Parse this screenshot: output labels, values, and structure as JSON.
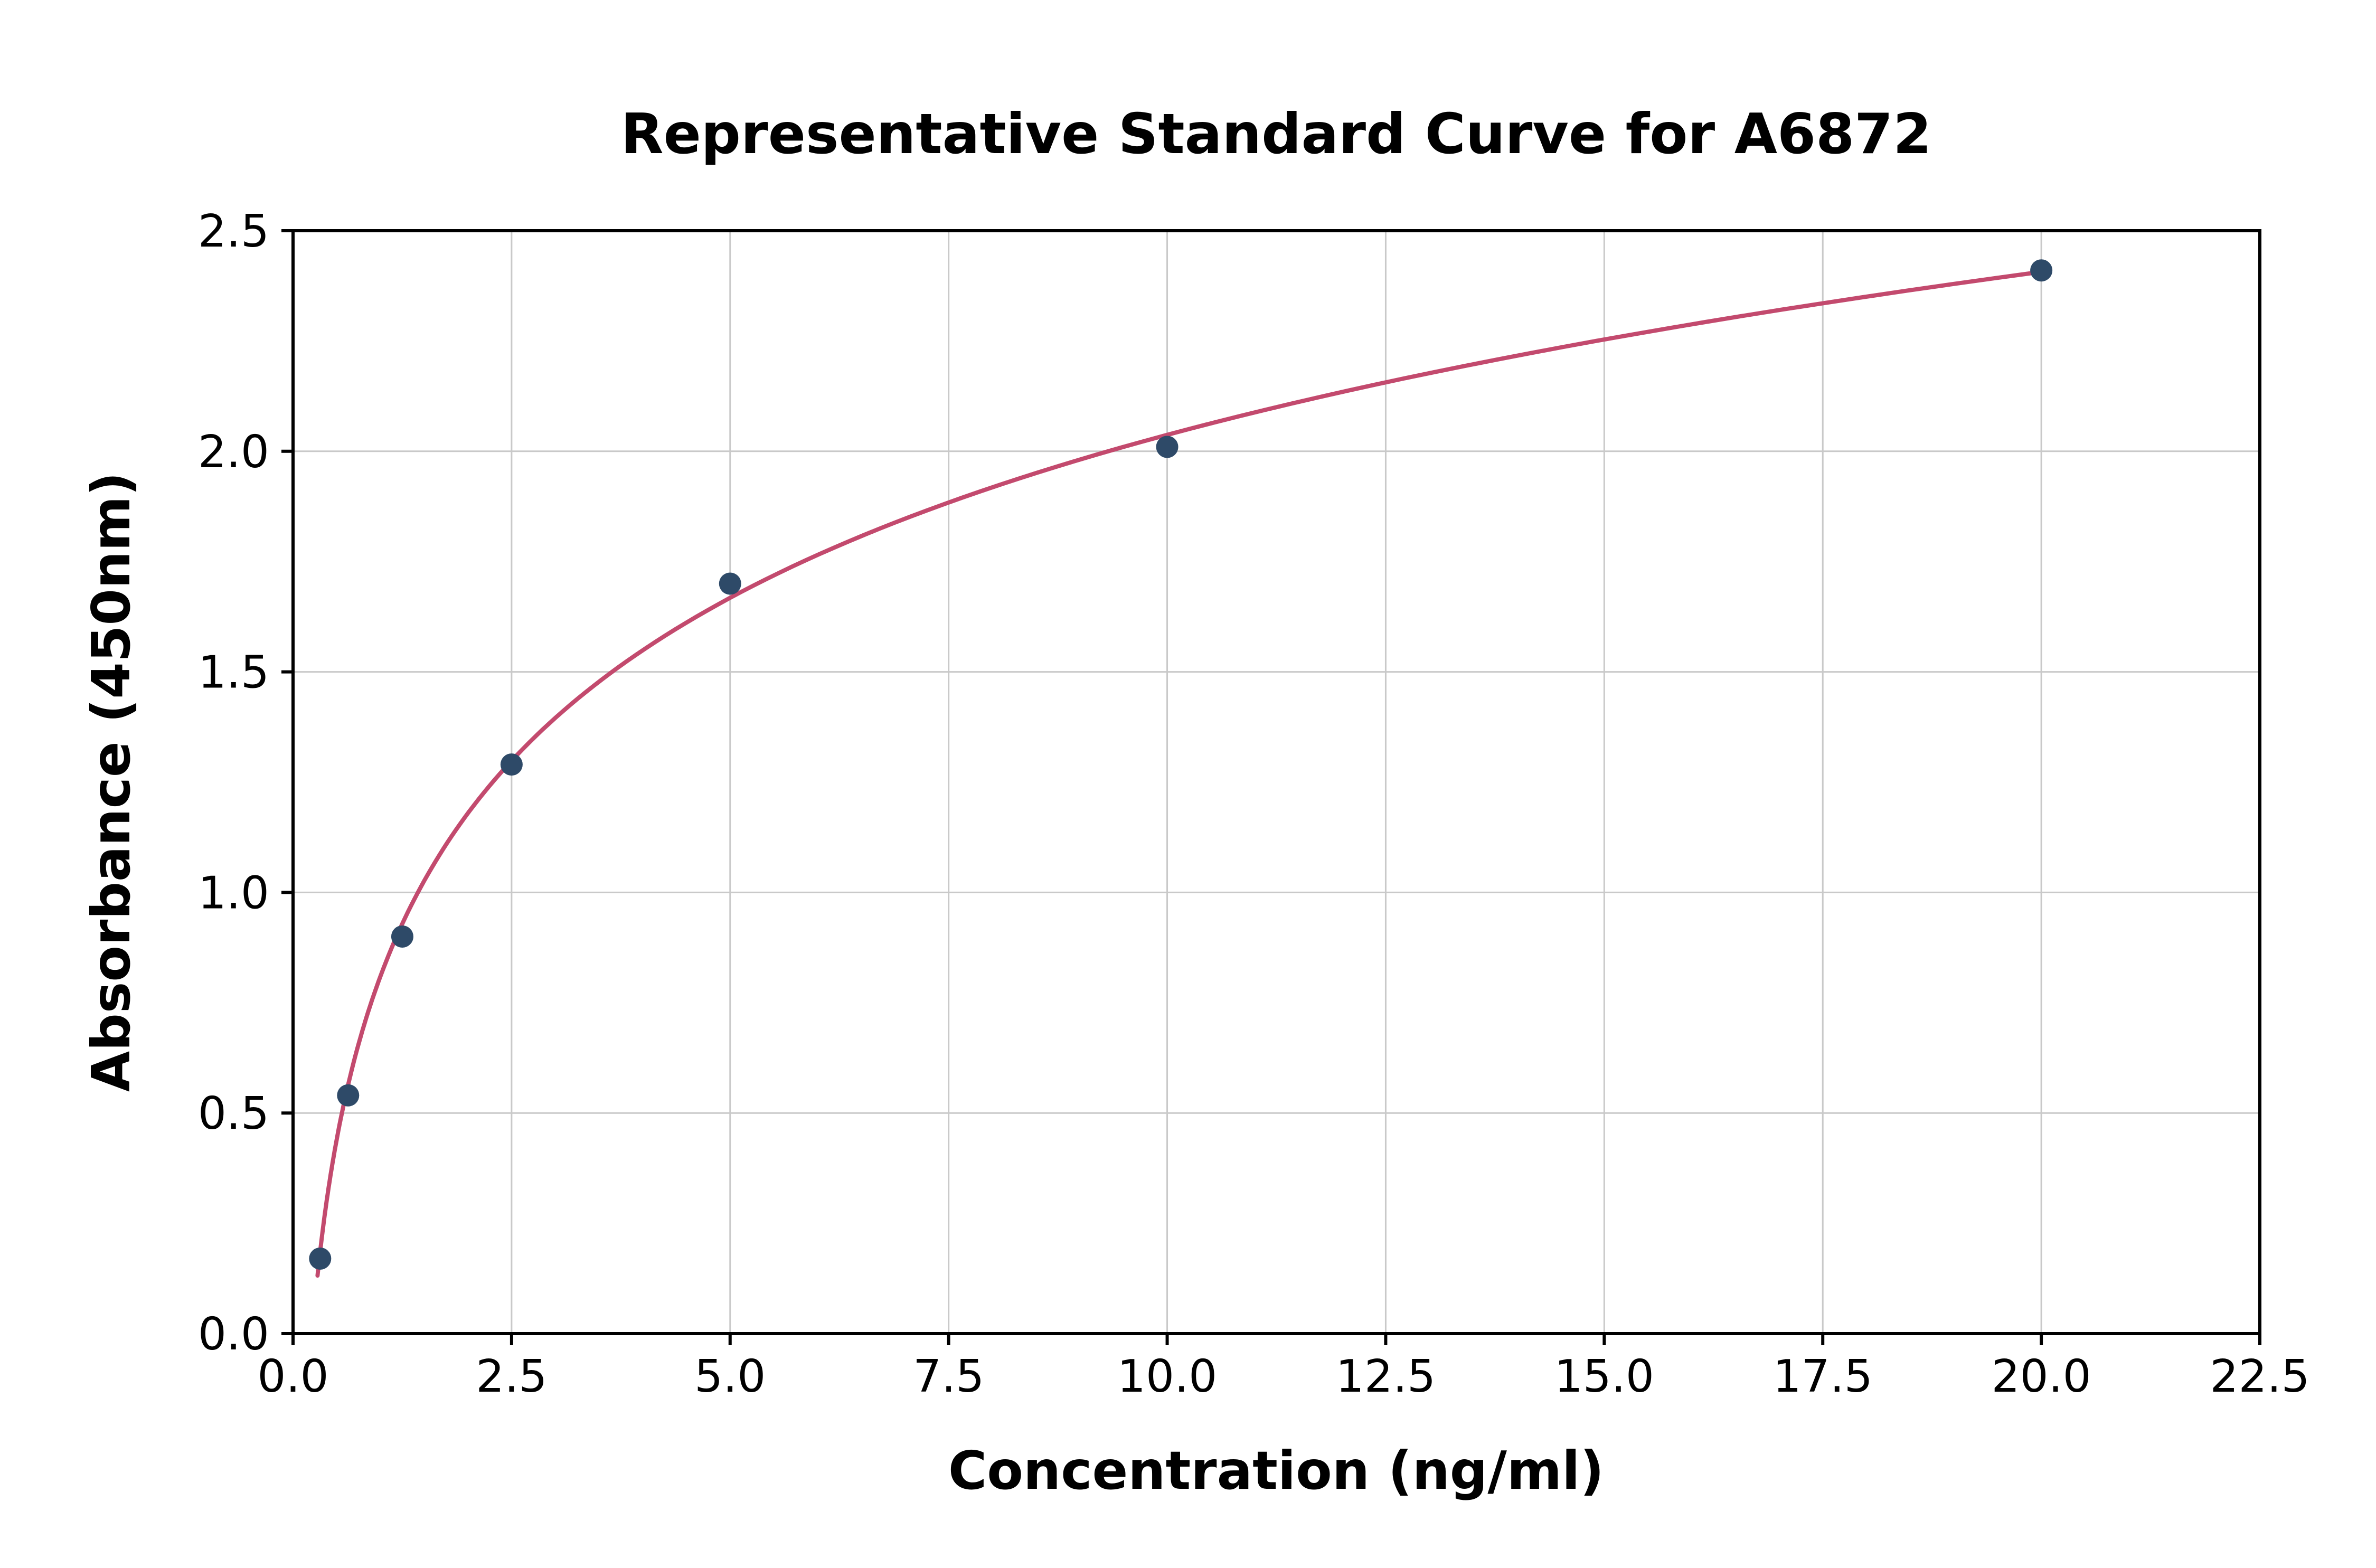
{
  "chart_data": {
    "type": "scatter",
    "title": "Representative Standard Curve for A6872",
    "xlabel": "Concentration (ng/ml)",
    "ylabel": "Absorbance (450nm)",
    "xlim": [
      0,
      22.5
    ],
    "ylim": [
      0,
      2.5
    ],
    "x_ticks": [
      0.0,
      2.5,
      5.0,
      7.5,
      10.0,
      12.5,
      15.0,
      17.5,
      20.0,
      22.5
    ],
    "y_ticks": [
      0.0,
      0.5,
      1.0,
      1.5,
      2.0,
      2.5
    ],
    "grid": true,
    "legend": "none",
    "points": [
      {
        "x": 0.31,
        "y": 0.17
      },
      {
        "x": 0.63,
        "y": 0.54
      },
      {
        "x": 1.25,
        "y": 0.9
      },
      {
        "x": 2.5,
        "y": 1.29
      },
      {
        "x": 5.0,
        "y": 1.7
      },
      {
        "x": 10.0,
        "y": 2.01
      },
      {
        "x": 20.0,
        "y": 2.41
      }
    ],
    "fit_curve": {
      "type": "logarithmic",
      "equation": "y = a + b*ln(x)",
      "a": 0.81,
      "b": 0.533,
      "x_start": 0.28,
      "x_end": 20.0
    },
    "colors": {
      "point": "#2e4a68",
      "curve": "#c34a6e",
      "grid": "#c9c9c9",
      "axis": "#000000",
      "background": "#ffffff"
    }
  }
}
